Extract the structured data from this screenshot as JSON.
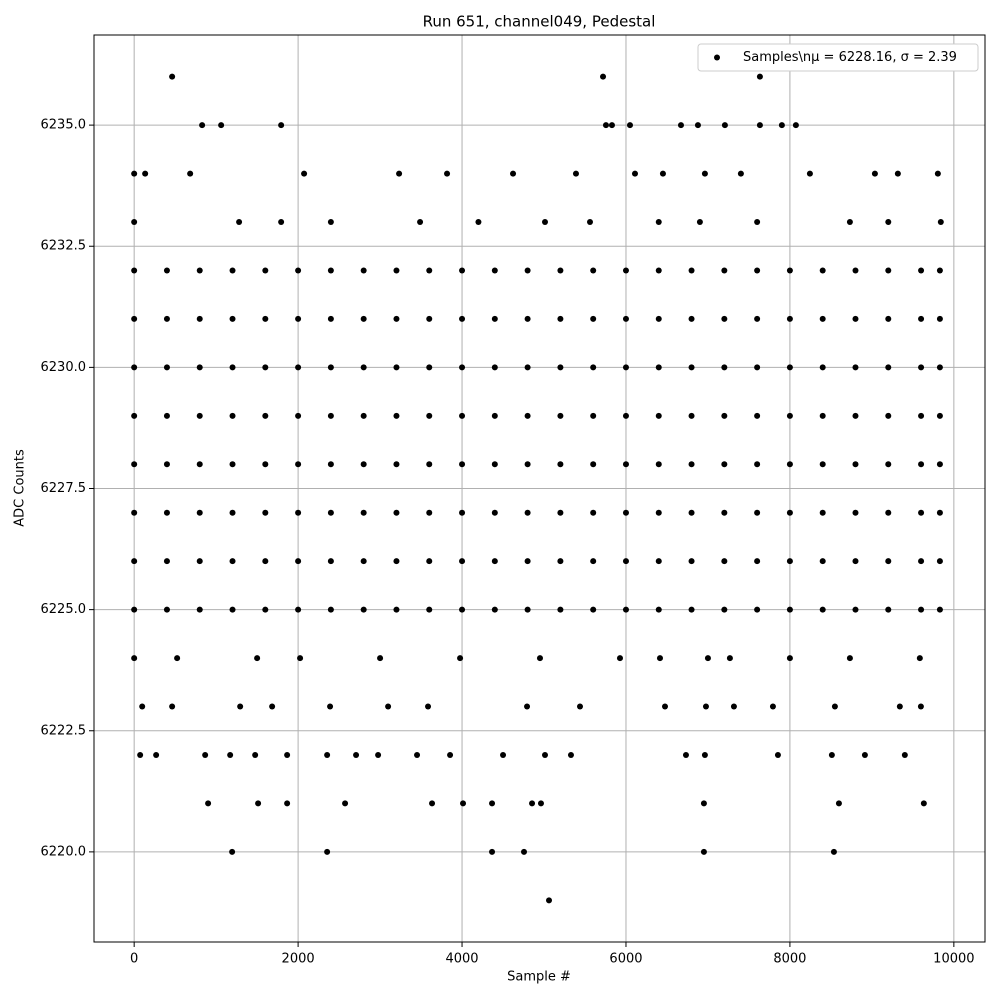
{
  "chart_data": {
    "type": "scatter",
    "title": "Run 651, channel049, Pedestal",
    "x_label": "Sample #",
    "y_label": "ADC Counts",
    "xlim": [
      -490,
      10380
    ],
    "ylim": [
      6218.14,
      6236.86
    ],
    "xticks": [
      0,
      2000,
      4000,
      6000,
      8000,
      10000
    ],
    "yticks": [
      {
        "value": 6220,
        "label": "6220.0"
      },
      {
        "value": 6222.5,
        "label": "6222.5"
      },
      {
        "value": 6225,
        "label": "6225.0"
      },
      {
        "value": 6227.5,
        "label": "6227.5"
      },
      {
        "value": 6230,
        "label": "6230.0"
      },
      {
        "value": 6232.5,
        "label": "6232.5"
      },
      {
        "value": 6235,
        "label": "6235.0"
      }
    ],
    "grid": true,
    "legend": "upper right",
    "series": [
      {
        "name": "Samples\\nμ = 6228.16, σ = 2.39",
        "color": "#000000",
        "x": [
          463,
          5720,
          7634,
          829,
          1061,
          1793,
          5756,
          5829,
          6049,
          6671,
          6878,
          7207,
          7634,
          7902,
          8073,
          0,
          134,
          683,
          2073,
          3232,
          3817,
          4622,
          5390,
          6110,
          6451,
          6963,
          7402,
          8244,
          9037,
          9317,
          9805,
          0,
          1280,
          1793,
          2400,
          3488,
          4200,
          5012,
          5561,
          6400,
          6902,
          7600,
          8732,
          9200,
          9841,
          0,
          524,
          1500,
          2024,
          3000,
          3976,
          4951,
          5927,
          6415,
          7000,
          7268,
          8000,
          8732,
          9585,
          98,
          463,
          1293,
          1683,
          2390,
          3098,
          3585,
          4793,
          5439,
          6476,
          6976,
          7317,
          7793,
          8549,
          9341,
          9598,
          73,
          268,
          866,
          1171,
          1476,
          1866,
          2354,
          2707,
          2976,
          3451,
          3854,
          4500,
          5012,
          5329,
          6732,
          6963,
          7854,
          8512,
          8915,
          9402,
          902,
          1512,
          1866,
          2573,
          3634,
          4012,
          4366,
          4854,
          4963,
          6951,
          8598,
          9634,
          1195,
          2354,
          4366,
          4756,
          6951,
          8537,
          5061,
          0,
          400,
          800,
          1200,
          1600,
          2000,
          2400,
          2800,
          3200,
          3600,
          4000,
          4400,
          4800,
          5200,
          5600,
          6000,
          6400,
          6800,
          7200,
          7600,
          8000,
          8400,
          8800,
          9200,
          9600,
          9830,
          0,
          400,
          800,
          1200,
          1600,
          2000,
          2400,
          2800,
          3200,
          3600,
          4000,
          4400,
          4800,
          5200,
          5600,
          6000,
          6400,
          6800,
          7200,
          7600,
          8000,
          8400,
          8800,
          9200,
          9600,
          9830,
          0,
          400,
          800,
          1200,
          1600,
          2000,
          2400,
          2800,
          3200,
          3600,
          4000,
          4400,
          4800,
          5200,
          5600,
          6000,
          6400,
          6800,
          7200,
          7600,
          8000,
          8400,
          8800,
          9200,
          9600,
          9830,
          0,
          400,
          800,
          1200,
          1600,
          2000,
          2400,
          2800,
          3200,
          3600,
          4000,
          4400,
          4800,
          5200,
          5600,
          6000,
          6400,
          6800,
          7200,
          7600,
          8000,
          8400,
          8800,
          9200,
          9600,
          9830,
          0,
          400,
          800,
          1200,
          1600,
          2000,
          2400,
          2800,
          3200,
          3600,
          4000,
          4400,
          4800,
          5200,
          5600,
          6000,
          6400,
          6800,
          7200,
          7600,
          8000,
          8400,
          8800,
          9200,
          9600,
          9830,
          0,
          400,
          800,
          1200,
          1600,
          2000,
          2400,
          2800,
          3200,
          3600,
          4000,
          4400,
          4800,
          5200,
          5600,
          6000,
          6400,
          6800,
          7200,
          7600,
          8000,
          8400,
          8800,
          9200,
          9600,
          9830,
          0,
          400,
          800,
          1200,
          1600,
          2000,
          2400,
          2800,
          3200,
          3600,
          4000,
          4400,
          4800,
          5200,
          5600,
          6000,
          6400,
          6800,
          7200,
          7600,
          8000,
          8400,
          8800,
          9200,
          9600,
          9830,
          0,
          400,
          800,
          1200,
          1600,
          2000,
          2400,
          2800,
          3200,
          3600,
          4000,
          4400,
          4800,
          5200,
          5600,
          6000,
          6400,
          6800,
          7200,
          7600,
          8000,
          8400,
          8800,
          9200,
          9600,
          9830
        ],
        "y": [
          6236,
          6236,
          6236,
          6235,
          6235,
          6235,
          6235,
          6235,
          6235,
          6235,
          6235,
          6235,
          6235,
          6235,
          6235,
          6234,
          6234,
          6234,
          6234,
          6234,
          6234,
          6234,
          6234,
          6234,
          6234,
          6234,
          6234,
          6234,
          6234,
          6234,
          6234,
          6233,
          6233,
          6233,
          6233,
          6233,
          6233,
          6233,
          6233,
          6233,
          6233,
          6233,
          6233,
          6233,
          6233,
          6224,
          6224,
          6224,
          6224,
          6224,
          6224,
          6224,
          6224,
          6224,
          6224,
          6224,
          6224,
          6224,
          6224,
          6223,
          6223,
          6223,
          6223,
          6223,
          6223,
          6223,
          6223,
          6223,
          6223,
          6223,
          6223,
          6223,
          6223,
          6223,
          6223,
          6222,
          6222,
          6222,
          6222,
          6222,
          6222,
          6222,
          6222,
          6222,
          6222,
          6222,
          6222,
          6222,
          6222,
          6222,
          6222,
          6222,
          6222,
          6222,
          6222,
          6221,
          6221,
          6221,
          6221,
          6221,
          6221,
          6221,
          6221,
          6221,
          6221,
          6221,
          6221,
          6220,
          6220,
          6220,
          6220,
          6220,
          6220,
          6219,
          6225,
          6225,
          6225,
          6225,
          6225,
          6225,
          6225,
          6225,
          6225,
          6225,
          6225,
          6225,
          6225,
          6225,
          6225,
          6225,
          6225,
          6225,
          6225,
          6225,
          6225,
          6225,
          6225,
          6225,
          6225,
          6225,
          6226,
          6226,
          6226,
          6226,
          6226,
          6226,
          6226,
          6226,
          6226,
          6226,
          6226,
          6226,
          6226,
          6226,
          6226,
          6226,
          6226,
          6226,
          6226,
          6226,
          6226,
          6226,
          6226,
          6226,
          6226,
          6226,
          6227,
          6227,
          6227,
          6227,
          6227,
          6227,
          6227,
          6227,
          6227,
          6227,
          6227,
          6227,
          6227,
          6227,
          6227,
          6227,
          6227,
          6227,
          6227,
          6227,
          6227,
          6227,
          6227,
          6227,
          6227,
          6227,
          6228,
          6228,
          6228,
          6228,
          6228,
          6228,
          6228,
          6228,
          6228,
          6228,
          6228,
          6228,
          6228,
          6228,
          6228,
          6228,
          6228,
          6228,
          6228,
          6228,
          6228,
          6228,
          6228,
          6228,
          6228,
          6228,
          6229,
          6229,
          6229,
          6229,
          6229,
          6229,
          6229,
          6229,
          6229,
          6229,
          6229,
          6229,
          6229,
          6229,
          6229,
          6229,
          6229,
          6229,
          6229,
          6229,
          6229,
          6229,
          6229,
          6229,
          6229,
          6229,
          6230,
          6230,
          6230,
          6230,
          6230,
          6230,
          6230,
          6230,
          6230,
          6230,
          6230,
          6230,
          6230,
          6230,
          6230,
          6230,
          6230,
          6230,
          6230,
          6230,
          6230,
          6230,
          6230,
          6230,
          6230,
          6230,
          6231,
          6231,
          6231,
          6231,
          6231,
          6231,
          6231,
          6231,
          6231,
          6231,
          6231,
          6231,
          6231,
          6231,
          6231,
          6231,
          6231,
          6231,
          6231,
          6231,
          6231,
          6231,
          6231,
          6231,
          6231,
          6231,
          6232,
          6232,
          6232,
          6232,
          6232,
          6232,
          6232,
          6232,
          6232,
          6232,
          6232,
          6232,
          6232,
          6232,
          6232,
          6232,
          6232,
          6232,
          6232,
          6232,
          6232,
          6232,
          6232,
          6232,
          6232,
          6232
        ]
      }
    ]
  }
}
